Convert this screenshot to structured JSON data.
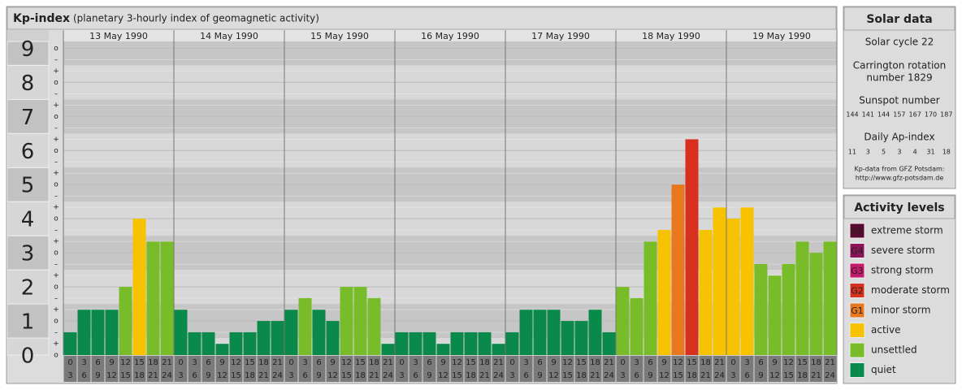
{
  "chart_data": {
    "type": "bar",
    "title": "Kp-index",
    "subtitle": "(planetary 3-hourly index of geomagnetic activity)",
    "days": [
      "13 May 1990",
      "14 May 1990",
      "15 May 1990",
      "16 May 1990",
      "17 May 1990",
      "18 May 1990",
      "19 May 1990"
    ],
    "hour_start": [
      "0",
      "3",
      "6",
      "9",
      "12",
      "15",
      "18",
      "21"
    ],
    "hour_end": [
      "3",
      "6",
      "9",
      "12",
      "15",
      "18",
      "21",
      "24"
    ],
    "values": [
      0.67,
      1.33,
      1.33,
      1.33,
      2,
      4,
      3.33,
      3.33,
      1.33,
      0.67,
      0.67,
      0.33,
      0.67,
      0.67,
      1,
      1,
      1.33,
      1.67,
      1.33,
      1,
      2,
      2,
      1.67,
      0.33,
      0.67,
      0.67,
      0.67,
      0.33,
      0.67,
      0.67,
      0.67,
      0.33,
      0.67,
      1.33,
      1.33,
      1.33,
      1,
      1,
      1.33,
      0.67,
      2,
      1.67,
      3.33,
      3.67,
      5,
      6.33,
      3.67,
      4.33,
      4,
      4.33,
      2.67,
      2.33,
      2.67,
      3.33,
      3,
      3.33
    ],
    "colors": [
      "#0a8a4a",
      "#0a8a4a",
      "#0a8a4a",
      "#0a8a4a",
      "#78bc2a",
      "#f7c200",
      "#78bc2a",
      "#78bc2a",
      "#0a8a4a",
      "#0a8a4a",
      "#0a8a4a",
      "#0a8a4a",
      "#0a8a4a",
      "#0a8a4a",
      "#0a8a4a",
      "#0a8a4a",
      "#0a8a4a",
      "#78bc2a",
      "#0a8a4a",
      "#0a8a4a",
      "#78bc2a",
      "#78bc2a",
      "#78bc2a",
      "#0a8a4a",
      "#0a8a4a",
      "#0a8a4a",
      "#0a8a4a",
      "#0a8a4a",
      "#0a8a4a",
      "#0a8a4a",
      "#0a8a4a",
      "#0a8a4a",
      "#0a8a4a",
      "#0a8a4a",
      "#0a8a4a",
      "#0a8a4a",
      "#0a8a4a",
      "#0a8a4a",
      "#0a8a4a",
      "#0a8a4a",
      "#78bc2a",
      "#78bc2a",
      "#78bc2a",
      "#f7c200",
      "#e8781e",
      "#d8301f",
      "#f7c200",
      "#f7c200",
      "#f7c200",
      "#f7c200",
      "#78bc2a",
      "#78bc2a",
      "#78bc2a",
      "#78bc2a",
      "#78bc2a",
      "#78bc2a"
    ],
    "ylim": [
      0,
      9.2
    ],
    "yticks": [
      0,
      1,
      2,
      3,
      4,
      5,
      6,
      7,
      8,
      9
    ],
    "minor_tick_labels": [
      "–",
      "o",
      "+"
    ],
    "grid": true
  },
  "solar_data": {
    "title": "Solar data",
    "solar_cycle": "Solar cycle 22",
    "carrington": [
      "Carrington rotation",
      "number 1829"
    ],
    "sunspot_label": "Sunspot number",
    "sunspot_numbers": [
      144,
      141,
      144,
      157,
      167,
      170,
      187
    ],
    "ap_label": "Daily Ap-index",
    "ap_values": [
      11,
      3,
      5,
      3,
      4,
      31,
      18
    ],
    "source": "Kp-data from GFZ Potsdam:",
    "url": "http://www.gfz-potsdam.de"
  },
  "activity_levels": {
    "title": "Activity levels",
    "items": [
      {
        "badge": "G5",
        "label": "extreme storm",
        "color": "#5a0a30"
      },
      {
        "badge": "G4",
        "label": "severe storm",
        "color": "#8b1458"
      },
      {
        "badge": "G3",
        "label": "strong storm",
        "color": "#c41a6a"
      },
      {
        "badge": "G2",
        "label": "moderate storm",
        "color": "#d8301f"
      },
      {
        "badge": "G1",
        "label": "minor storm",
        "color": "#e8781e"
      },
      {
        "label": "active",
        "color": "#f7c200"
      },
      {
        "label": "unsettled",
        "color": "#78bc2a"
      },
      {
        "label": "quiet",
        "color": "#0a8a4a"
      }
    ]
  }
}
